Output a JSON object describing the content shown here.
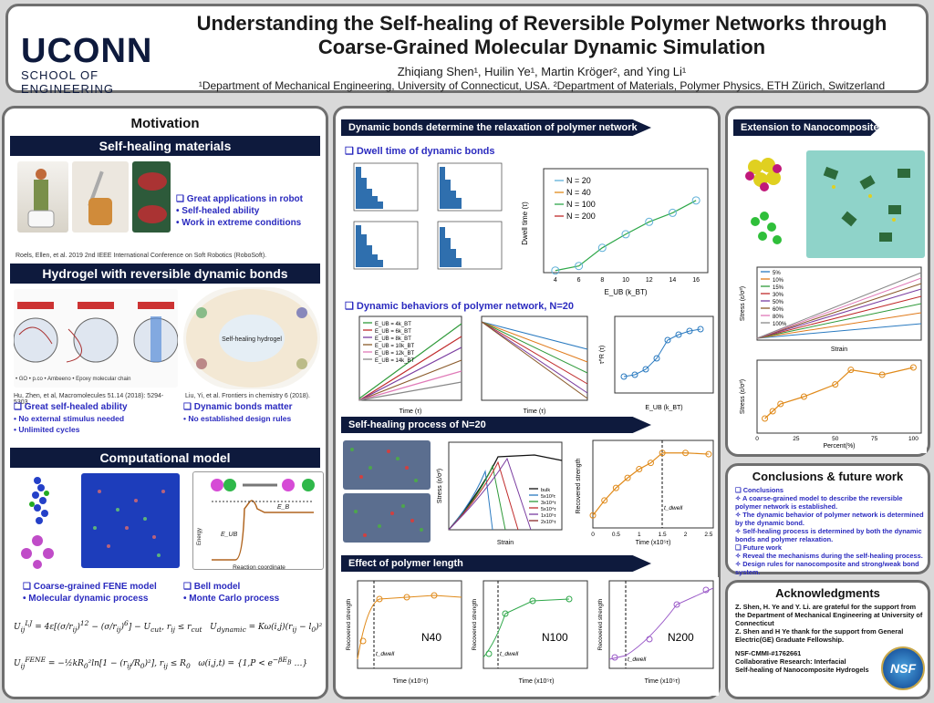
{
  "header": {
    "title": "Understanding the Self-healing of Reversible Polymer Networks through Coarse-Grained Molecular Dynamic Simulation",
    "logo_main": "UCONN",
    "logo_sub": "SCHOOL OF ENGINEERING",
    "authors": "Zhiqiang Shen¹, Huilin Ye¹, Martin Kröger², and  Ying Li¹",
    "affiliations": "¹Department of Mechanical Engineering, University of Connecticut, USA. ²Department of Materials, Polymer Physics, ETH Zürich, Switzerland"
  },
  "motivation": {
    "heading": "Motivation",
    "self_healing": {
      "bar": "Self-healing materials",
      "bullets": [
        "Great applications in robot",
        "Self-healed ability",
        "Work in extreme conditions"
      ],
      "ref": "Roels, Ellen, et al. 2019 2nd IEEE International Conference on Soft Robotics (RoboSoft)."
    },
    "hydrogel": {
      "bar": "Hydrogel with reversible dynamic bonds",
      "ref1": "Hu, Zhen, et al, Macromolecules 51.14 (2018): 5294-5303.",
      "ref2": "Liu, Yi, et al. Frontiers in chemistry 6 (2018).",
      "left_head": "Great self-healed ability",
      "left_items": [
        "No external stimulus needed",
        "Unlimited cycles"
      ],
      "right_head": "Dynamic bonds matter",
      "right_items": [
        "No established design rules"
      ],
      "center_label": "Self-healing hydrogel"
    },
    "computational": {
      "bar": "Computational model",
      "left_head": "Coarse-grained FENE model",
      "left_item": "Molecular dynamic process",
      "right_head": "Bell model",
      "right_item": "Monte Carlo process",
      "energy_label": "Energy",
      "reaction_label": "Reaction coordinate",
      "eub": "E_UB",
      "eb": "E_B"
    }
  },
  "middle": {
    "sec1": "Dynamic bonds determine the relaxation of polymer network",
    "dwell_head": "Dwell time of dynamic bonds",
    "dyn_head": "Dynamic behaviors of polymer network, N=20",
    "sec2": "Self-healing process of N=20",
    "sec3": "Effect of polymer length",
    "legend_N": [
      "N = 20",
      "N = 40",
      "N = 100",
      "N = 200"
    ],
    "legend_E": [
      "E_UB = 4k_BT",
      "E_UB = 6k_BT",
      "E_UB = 8k_BT",
      "E_UB = 10k_BT",
      "E_UB = 12k_BT",
      "E_UB = 14k_BT"
    ],
    "legend_heal": [
      "bulk",
      "5x10²τ",
      "3x10⁴τ",
      "5x10⁴τ",
      "1x10⁵τ",
      "2x10⁵τ"
    ],
    "length_labels": [
      "N40",
      "N100",
      "N200"
    ],
    "axis": {
      "dwell_y": "Dwell time (τ)",
      "dwell_x": "E_UB (k_BT)",
      "time": "Time (τ)",
      "stress": "Stress (ε/σ³)",
      "strain": "Strain",
      "recovered": "Recovered strength",
      "time_e5": "Time (x10⁵τ)",
      "tdwell": "t_dwell",
      "tau_r": "τ^R (τ)",
      "g1": "g₁ (σ²)"
    }
  },
  "right": {
    "bar": "Extension to Nanocomposite",
    "percent_legend": [
      "5%",
      "10%",
      "15%",
      "30%",
      "50%",
      "60%",
      "80%",
      "100%"
    ],
    "strain": "Strain",
    "stress": "Stress (ε/σ³)",
    "percent": "Percent(%)"
  },
  "conclusions": {
    "title": "Conclusions & future work",
    "c_head": "Conclusions",
    "c_items": [
      "A coarse-grained model to describe the  reversible polymer network is established.",
      "The dynamic behavior of polymer network is determined by the dynamic bond.",
      "Self-healing process is determined by both the dynamic bonds and polymer relaxation."
    ],
    "f_head": "Future work",
    "f_items": [
      "Reveal the mechanisms during the self-healing process.",
      "Design rules for nanocomposite and strong/weak bond system."
    ]
  },
  "ack": {
    "title": "Acknowledgments",
    "p1": "Z. Shen, H. Ye and Y. Li. are grateful for the support from the Department of Mechanical Engineering at University of Connecticut",
    "p2": "Z. Shen and H Ye thank for the support from General Electric(GE) Graduate Fellowship.",
    "p3": "NSF-CMMI-#1762661",
    "p4": "Collaborative Research: Interfacial",
    "p5": "Self-healing of Nanocomposite Hydrogels",
    "nsf": "NSF"
  },
  "chart_data": [
    {
      "type": "line",
      "title": "",
      "xlabel": "E_UB (k_BT)",
      "ylabel": "Dwell time (τ)",
      "x": [
        4,
        6,
        8,
        10,
        12,
        14,
        16
      ],
      "series": [
        {
          "name": "N = 20",
          "values": [
            120,
            180,
            900,
            3000,
            9000,
            20000,
            60000
          ]
        }
      ],
      "yscale": "log"
    },
    {
      "type": "line",
      "xlabel": "Time (x10⁵τ)",
      "ylabel": "Recovered strength",
      "x": [
        0,
        0.25,
        0.5,
        0.75,
        1.0,
        1.25,
        1.5,
        2.0,
        2.5
      ],
      "series": [
        {
          "name": "",
          "values": [
            0.5,
            0.62,
            0.72,
            0.8,
            0.87,
            0.92,
            1.0,
            1.0,
            0.99
          ]
        }
      ]
    },
    {
      "type": "line",
      "xlabel": "Strain",
      "ylabel": "Stress (ε/σ³)",
      "x": [
        0,
        1,
        2,
        3,
        4,
        5
      ],
      "series": [
        {
          "name": "5%",
          "values": [
            0,
            0.02,
            0.04,
            0.06,
            0.08,
            0.1
          ]
        }
      ]
    },
    {
      "type": "line",
      "xlabel": "Percent(%)",
      "ylabel": "Stress (ε/σ³)",
      "x": [
        5,
        10,
        15,
        30,
        50,
        60,
        80,
        100
      ],
      "series": [
        {
          "name": "",
          "values": [
            0.06,
            0.09,
            0.12,
            0.15,
            0.2,
            0.26,
            0.24,
            0.27
          ]
        }
      ]
    }
  ]
}
